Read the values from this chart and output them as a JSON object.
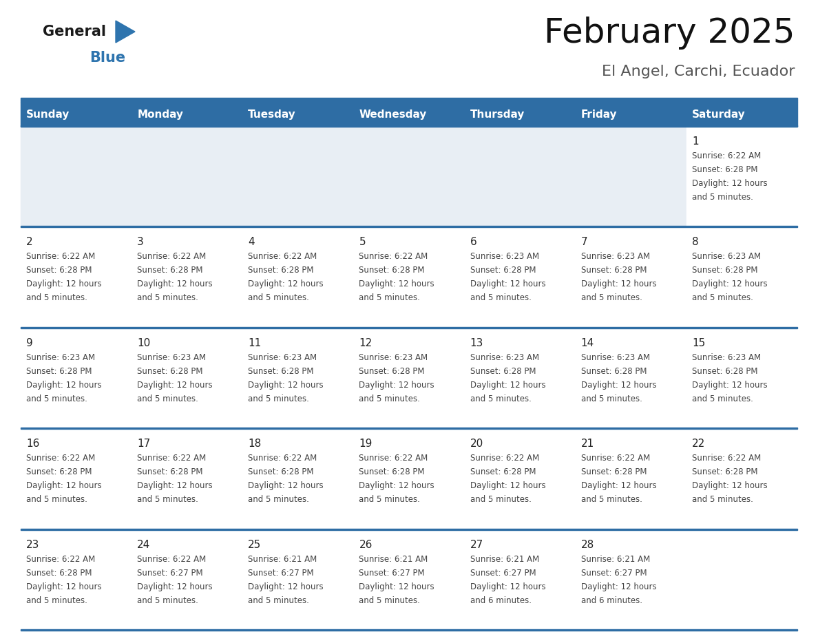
{
  "title": "February 2025",
  "subtitle": "El Angel, Carchi, Ecuador",
  "days_of_week": [
    "Sunday",
    "Monday",
    "Tuesday",
    "Wednesday",
    "Thursday",
    "Friday",
    "Saturday"
  ],
  "header_bg": "#2E6DA4",
  "header_text": "#FFFFFF",
  "cell_bg_white": "#FFFFFF",
  "cell_bg_gray": "#E8EEF4",
  "divider_color": "#2E6DA4",
  "day_num_color": "#222222",
  "info_text_color": "#444444",
  "logo_general_color": "#1a1a1a",
  "logo_blue_color": "#2E74AE",
  "logo_triangle_color": "#2E74AE",
  "calendar_data": [
    [
      null,
      null,
      null,
      null,
      null,
      null,
      {
        "day": 1,
        "sunrise": "6:22 AM",
        "sunset": "6:28 PM",
        "daylight": "12 hours",
        "daylight2": "and 5 minutes."
      }
    ],
    [
      {
        "day": 2,
        "sunrise": "6:22 AM",
        "sunset": "6:28 PM",
        "daylight": "12 hours",
        "daylight2": "and 5 minutes."
      },
      {
        "day": 3,
        "sunrise": "6:22 AM",
        "sunset": "6:28 PM",
        "daylight": "12 hours",
        "daylight2": "and 5 minutes."
      },
      {
        "day": 4,
        "sunrise": "6:22 AM",
        "sunset": "6:28 PM",
        "daylight": "12 hours",
        "daylight2": "and 5 minutes."
      },
      {
        "day": 5,
        "sunrise": "6:22 AM",
        "sunset": "6:28 PM",
        "daylight": "12 hours",
        "daylight2": "and 5 minutes."
      },
      {
        "day": 6,
        "sunrise": "6:23 AM",
        "sunset": "6:28 PM",
        "daylight": "12 hours",
        "daylight2": "and 5 minutes."
      },
      {
        "day": 7,
        "sunrise": "6:23 AM",
        "sunset": "6:28 PM",
        "daylight": "12 hours",
        "daylight2": "and 5 minutes."
      },
      {
        "day": 8,
        "sunrise": "6:23 AM",
        "sunset": "6:28 PM",
        "daylight": "12 hours",
        "daylight2": "and 5 minutes."
      }
    ],
    [
      {
        "day": 9,
        "sunrise": "6:23 AM",
        "sunset": "6:28 PM",
        "daylight": "12 hours",
        "daylight2": "and 5 minutes."
      },
      {
        "day": 10,
        "sunrise": "6:23 AM",
        "sunset": "6:28 PM",
        "daylight": "12 hours",
        "daylight2": "and 5 minutes."
      },
      {
        "day": 11,
        "sunrise": "6:23 AM",
        "sunset": "6:28 PM",
        "daylight": "12 hours",
        "daylight2": "and 5 minutes."
      },
      {
        "day": 12,
        "sunrise": "6:23 AM",
        "sunset": "6:28 PM",
        "daylight": "12 hours",
        "daylight2": "and 5 minutes."
      },
      {
        "day": 13,
        "sunrise": "6:23 AM",
        "sunset": "6:28 PM",
        "daylight": "12 hours",
        "daylight2": "and 5 minutes."
      },
      {
        "day": 14,
        "sunrise": "6:23 AM",
        "sunset": "6:28 PM",
        "daylight": "12 hours",
        "daylight2": "and 5 minutes."
      },
      {
        "day": 15,
        "sunrise": "6:23 AM",
        "sunset": "6:28 PM",
        "daylight": "12 hours",
        "daylight2": "and 5 minutes."
      }
    ],
    [
      {
        "day": 16,
        "sunrise": "6:22 AM",
        "sunset": "6:28 PM",
        "daylight": "12 hours",
        "daylight2": "and 5 minutes."
      },
      {
        "day": 17,
        "sunrise": "6:22 AM",
        "sunset": "6:28 PM",
        "daylight": "12 hours",
        "daylight2": "and 5 minutes."
      },
      {
        "day": 18,
        "sunrise": "6:22 AM",
        "sunset": "6:28 PM",
        "daylight": "12 hours",
        "daylight2": "and 5 minutes."
      },
      {
        "day": 19,
        "sunrise": "6:22 AM",
        "sunset": "6:28 PM",
        "daylight": "12 hours",
        "daylight2": "and 5 minutes."
      },
      {
        "day": 20,
        "sunrise": "6:22 AM",
        "sunset": "6:28 PM",
        "daylight": "12 hours",
        "daylight2": "and 5 minutes."
      },
      {
        "day": 21,
        "sunrise": "6:22 AM",
        "sunset": "6:28 PM",
        "daylight": "12 hours",
        "daylight2": "and 5 minutes."
      },
      {
        "day": 22,
        "sunrise": "6:22 AM",
        "sunset": "6:28 PM",
        "daylight": "12 hours",
        "daylight2": "and 5 minutes."
      }
    ],
    [
      {
        "day": 23,
        "sunrise": "6:22 AM",
        "sunset": "6:28 PM",
        "daylight": "12 hours",
        "daylight2": "and 5 minutes."
      },
      {
        "day": 24,
        "sunrise": "6:22 AM",
        "sunset": "6:27 PM",
        "daylight": "12 hours",
        "daylight2": "and 5 minutes."
      },
      {
        "day": 25,
        "sunrise": "6:21 AM",
        "sunset": "6:27 PM",
        "daylight": "12 hours",
        "daylight2": "and 5 minutes."
      },
      {
        "day": 26,
        "sunrise": "6:21 AM",
        "sunset": "6:27 PM",
        "daylight": "12 hours",
        "daylight2": "and 5 minutes."
      },
      {
        "day": 27,
        "sunrise": "6:21 AM",
        "sunset": "6:27 PM",
        "daylight": "12 hours",
        "daylight2": "and 6 minutes."
      },
      {
        "day": 28,
        "sunrise": "6:21 AM",
        "sunset": "6:27 PM",
        "daylight": "12 hours",
        "daylight2": "and 6 minutes."
      },
      null
    ]
  ],
  "title_fontsize": 36,
  "subtitle_fontsize": 16,
  "header_fontsize": 11,
  "day_num_fontsize": 11,
  "info_fontsize": 8.5,
  "logo_general_fontsize": 15,
  "logo_blue_fontsize": 15
}
